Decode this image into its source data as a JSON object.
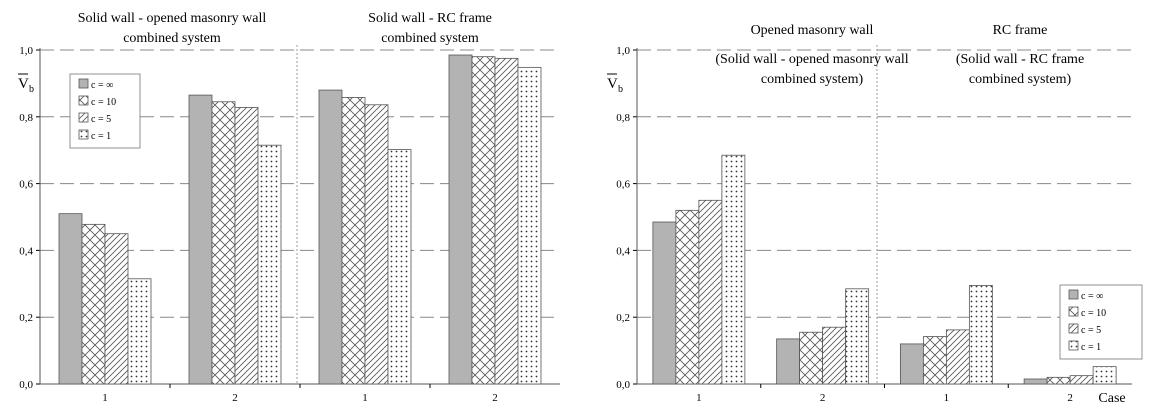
{
  "chart_data": [
    {
      "type": "bar",
      "ylabel_symbol": "V",
      "ylabel_subscript": "b",
      "ylim": [
        0,
        1
      ],
      "yticks": [
        "0,0",
        "0,2",
        "0,4",
        "0,6",
        "0,8",
        "1,0"
      ],
      "grid": "horizontal dashed",
      "legend_position": "top-left",
      "xlabel": "",
      "groups": [
        {
          "lines": [
            "Solid wall - opened masonry wall",
            "combined system"
          ],
          "categories": [
            "1",
            "2"
          ]
        },
        {
          "lines": [
            "Solid wall - RC frame",
            "combined system"
          ],
          "categories": [
            "1",
            "2"
          ]
        }
      ],
      "series": [
        {
          "name": "c = ∞",
          "pattern": "solid-gray",
          "values": [
            0.51,
            0.865,
            0.88,
            0.985
          ]
        },
        {
          "name": "c = 10",
          "pattern": "crosshatch",
          "values": [
            0.478,
            0.845,
            0.858,
            0.98
          ]
        },
        {
          "name": "c = 5",
          "pattern": "diagonal",
          "values": [
            0.45,
            0.828,
            0.836,
            0.975
          ]
        },
        {
          "name": "c = 1",
          "pattern": "dotted",
          "values": [
            0.315,
            0.715,
            0.702,
            0.948
          ]
        }
      ]
    },
    {
      "type": "bar",
      "ylabel_symbol": "V",
      "ylabel_subscript": "b",
      "ylim": [
        0,
        1
      ],
      "yticks": [
        "0,0",
        "0,2",
        "0,4",
        "0,6",
        "0,8",
        "1,0"
      ],
      "grid": "horizontal dashed",
      "legend_position": "right",
      "xlabel": "Case",
      "groups": [
        {
          "title": "Opened masonry wall",
          "lines": [
            "(Solid wall - opened masonry wall",
            "combined system)"
          ],
          "categories": [
            "1",
            "2"
          ]
        },
        {
          "title": "RC frame",
          "lines": [
            "(Solid wall - RC frame",
            "combined system)"
          ],
          "categories": [
            "1",
            "2"
          ]
        }
      ],
      "series": [
        {
          "name": "c = ∞",
          "pattern": "solid-gray",
          "values": [
            0.485,
            0.135,
            0.12,
            0.015
          ]
        },
        {
          "name": "c = 10",
          "pattern": "crosshatch",
          "values": [
            0.52,
            0.155,
            0.142,
            0.02
          ]
        },
        {
          "name": "c = 5",
          "pattern": "diagonal",
          "values": [
            0.55,
            0.17,
            0.162,
            0.025
          ]
        },
        {
          "name": "c = 1",
          "pattern": "dotted",
          "values": [
            0.685,
            0.285,
            0.295,
            0.052
          ]
        }
      ]
    }
  ],
  "colors": {
    "solid_bar": "#b3b3b3",
    "grid": "#888888",
    "axis": "#555555"
  }
}
